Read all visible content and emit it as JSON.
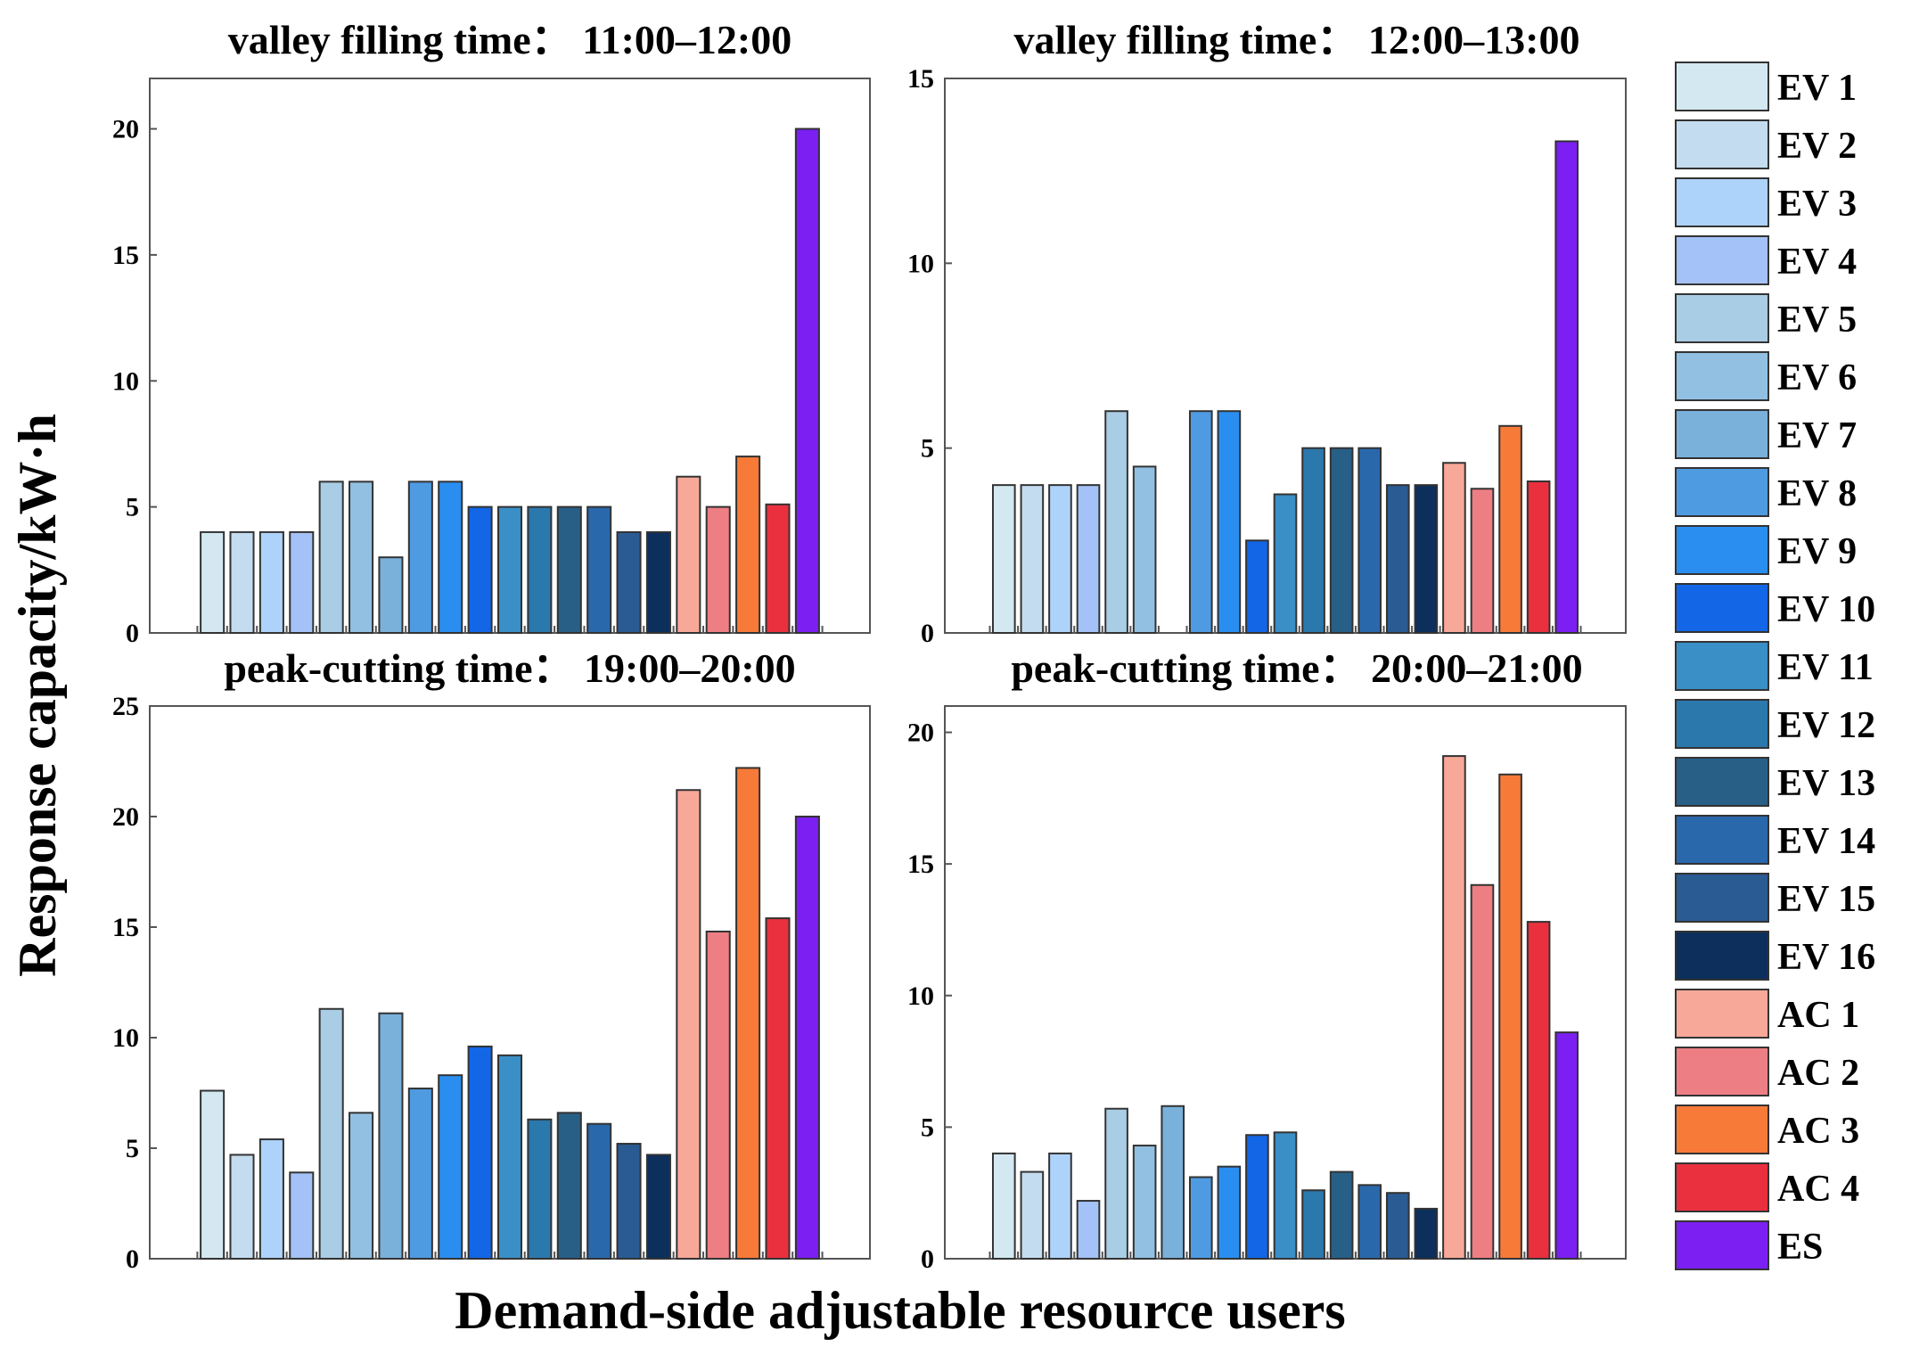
{
  "figure": {
    "ylabel": "Response capacity/kW·h",
    "xlabel": "Demand-side adjustable resource users"
  },
  "chart_data": [
    {
      "type": "bar",
      "title": "valley filling time：  11:00–12:00",
      "ylim": [
        0,
        22
      ],
      "yticks": [
        0,
        5,
        10,
        15,
        20
      ],
      "categories": [
        "EV 1",
        "EV 2",
        "EV 3",
        "EV 4",
        "EV 5",
        "EV 6",
        "EV 7",
        "EV 8",
        "EV 9",
        "EV 10",
        "EV 11",
        "EV 12",
        "EV 13",
        "EV 14",
        "EV 15",
        "EV 16",
        "AC 1",
        "AC 2",
        "AC 3",
        "AC 4",
        "ES"
      ],
      "values": [
        4,
        4,
        4,
        4,
        6,
        6,
        3,
        6,
        6,
        5,
        5,
        5,
        5,
        5,
        4,
        4,
        6.2,
        5,
        7,
        5.1,
        20
      ],
      "grid": false
    },
    {
      "type": "bar",
      "title": "valley filling time：  12:00–13:00",
      "ylim": [
        0,
        15
      ],
      "yticks": [
        0,
        5,
        10,
        15
      ],
      "categories": [
        "EV 1",
        "EV 2",
        "EV 3",
        "EV 4",
        "EV 5",
        "EV 6",
        "EV 7",
        "EV 8",
        "EV 9",
        "EV 10",
        "EV 11",
        "EV 12",
        "EV 13",
        "EV 14",
        "EV 15",
        "EV 16",
        "AC 1",
        "AC 2",
        "AC 3",
        "AC 4",
        "ES"
      ],
      "values": [
        4,
        4,
        4,
        4,
        6,
        4.5,
        0,
        6,
        6,
        2.5,
        3.75,
        5,
        5,
        5,
        4,
        4,
        4.6,
        3.9,
        5.6,
        4.1,
        13.3
      ],
      "grid": false
    },
    {
      "type": "bar",
      "title": "peak-cutting time：  19:00–20:00",
      "ylim": [
        0,
        25
      ],
      "yticks": [
        0,
        5,
        10,
        15,
        20,
        25
      ],
      "categories": [
        "EV 1",
        "EV 2",
        "EV 3",
        "EV 4",
        "EV 5",
        "EV 6",
        "EV 7",
        "EV 8",
        "EV 9",
        "EV 10",
        "EV 11",
        "EV 12",
        "EV 13",
        "EV 14",
        "EV 15",
        "EV 16",
        "AC 1",
        "AC 2",
        "AC 3",
        "AC 4",
        "ES"
      ],
      "values": [
        7.6,
        4.7,
        5.4,
        3.9,
        11.3,
        6.6,
        11.1,
        7.7,
        8.3,
        9.6,
        9.2,
        6.3,
        6.6,
        6.1,
        5.2,
        4.7,
        21.2,
        14.8,
        22.2,
        15.4,
        20
      ],
      "grid": false
    },
    {
      "type": "bar",
      "title": "peak-cutting time：  20:00–21:00",
      "ylim": [
        0,
        21
      ],
      "yticks": [
        0,
        5,
        10,
        15,
        20
      ],
      "categories": [
        "EV 1",
        "EV 2",
        "EV 3",
        "EV 4",
        "EV 5",
        "EV 6",
        "EV 7",
        "EV 8",
        "EV 9",
        "EV 10",
        "EV 11",
        "EV 12",
        "EV 13",
        "EV 14",
        "EV 15",
        "EV 16",
        "AC 1",
        "AC 2",
        "AC 3",
        "AC 4",
        "ES"
      ],
      "values": [
        4,
        3.3,
        4,
        2.2,
        5.7,
        4.3,
        5.8,
        3.1,
        3.5,
        4.7,
        4.8,
        2.6,
        3.3,
        2.8,
        2.5,
        1.9,
        19.1,
        14.2,
        18.4,
        12.8,
        8.6
      ],
      "grid": false
    }
  ],
  "legend": {
    "position": "right",
    "items": [
      {
        "label": "EV 1",
        "color": "#d4e8f2"
      },
      {
        "label": "EV 2",
        "color": "#c4dcef"
      },
      {
        "label": "EV 3",
        "color": "#aed3fb"
      },
      {
        "label": "EV 4",
        "color": "#a4c2f7"
      },
      {
        "label": "EV 5",
        "color": "#a9cde4"
      },
      {
        "label": "EV 6",
        "color": "#92c0e2"
      },
      {
        "label": "EV 7",
        "color": "#79b1da"
      },
      {
        "label": "EV 8",
        "color": "#4f9be2"
      },
      {
        "label": "EV 9",
        "color": "#2a8ef0"
      },
      {
        "label": "EV 10",
        "color": "#1366e6"
      },
      {
        "label": "EV 11",
        "color": "#3a8fc6"
      },
      {
        "label": "EV 12",
        "color": "#2b78ad"
      },
      {
        "label": "EV 13",
        "color": "#285f87"
      },
      {
        "label": "EV 14",
        "color": "#2a68ac"
      },
      {
        "label": "EV 15",
        "color": "#2a5b93"
      },
      {
        "label": "EV 16",
        "color": "#0c2f5c"
      },
      {
        "label": "AC 1",
        "color": "#f8a898"
      },
      {
        "label": "AC 2",
        "color": "#ed7f84"
      },
      {
        "label": "AC 3",
        "color": "#f77a38"
      },
      {
        "label": "AC 4",
        "color": "#ea303e"
      },
      {
        "label": "ES",
        "color": "#7b1ff2"
      }
    ]
  }
}
